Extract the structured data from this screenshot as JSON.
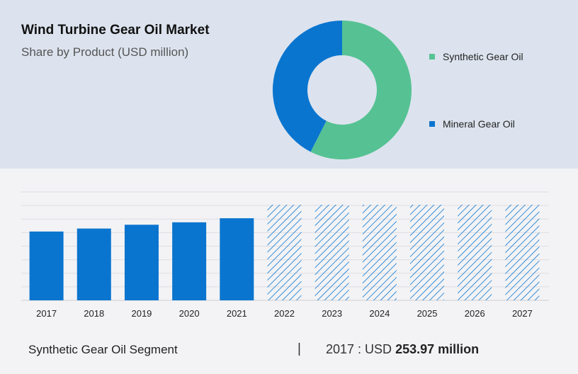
{
  "header": {
    "title": "Wind Turbine Gear Oil Market",
    "subtitle": "Share by Product (USD million)"
  },
  "colors": {
    "synthetic": "#56c293",
    "mineral": "#0a75cf",
    "bar": "#0a75cf",
    "top_panel": "#dce3ee",
    "bottom_panel": "#f3f3f5"
  },
  "legend": [
    {
      "label": "Synthetic Gear Oil",
      "color": "#56c293"
    },
    {
      "label": "Mineral Gear Oil",
      "color": "#0a75cf"
    }
  ],
  "chart_data": [
    {
      "type": "pie",
      "donut": true,
      "categories": [
        "Synthetic Gear Oil",
        "Mineral Gear Oil"
      ],
      "values": [
        57.5,
        42.5
      ],
      "legend_position": "right"
    },
    {
      "type": "bar",
      "categories": [
        "2017",
        "2018",
        "2019",
        "2020",
        "2021",
        "2022",
        "2023",
        "2024",
        "2025",
        "2026",
        "2027"
      ],
      "values": [
        253.97,
        265,
        279,
        288,
        303,
        353,
        353,
        353,
        353,
        353,
        353
      ],
      "forecast": [
        false,
        false,
        false,
        false,
        false,
        true,
        true,
        true,
        true,
        true,
        true
      ],
      "ylim": [
        0,
        400
      ],
      "grid": true,
      "xlabel": "",
      "ylabel": ""
    }
  ],
  "footer": {
    "segment": "Synthetic Gear Oil Segment",
    "divider": "|",
    "year_label": "2017 : USD",
    "value_label": "253.97 million"
  }
}
